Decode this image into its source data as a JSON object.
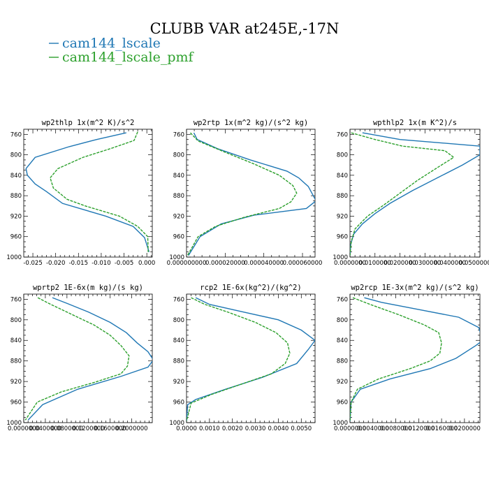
{
  "figure": {
    "title": "CLUBB VAR at245E,-17N",
    "legend": [
      {
        "label": "cam144_lscale",
        "color": "#1f77b4"
      },
      {
        "label": "cam144_lscale_pmf",
        "color": "#2ca02c"
      }
    ]
  },
  "chart_data": [
    {
      "type": "line",
      "title": "wp2thlp  1x(m^2 K)/s^2",
      "xlim": [
        -0.027,
        0.0012
      ],
      "ylim": [
        1000,
        750
      ],
      "xticks": [
        -0.025,
        -0.02,
        -0.015,
        -0.01,
        -0.005,
        0.0
      ],
      "xtick_labels": [
        "-0.025",
        "-0.020",
        "-0.015",
        "-0.010",
        "-0.005",
        "0.000"
      ],
      "yticks": [
        760,
        800,
        840,
        880,
        920,
        960,
        1000
      ],
      "ytick_labels": [
        "760",
        "800",
        "840",
        "880",
        "920",
        "960",
        "1000"
      ],
      "series": [
        {
          "name": "cam144_lscale",
          "style": "solid",
          "color": "#1f77b4",
          "x": [
            -0.0045,
            -0.011,
            -0.017,
            -0.0245,
            -0.0265,
            -0.0262,
            -0.0245,
            -0.022,
            -0.0185,
            -0.009,
            -0.003,
            -0.0005,
            0.0005
          ],
          "y": [
            757,
            770,
            784,
            805,
            827,
            840,
            857,
            872,
            895,
            920,
            940,
            962,
            990
          ]
        },
        {
          "name": "cam144_lscale_pmf",
          "style": "dashed",
          "color": "#2ca02c",
          "x": [
            -0.002,
            -0.0028,
            -0.008,
            -0.014,
            -0.0195,
            -0.0212,
            -0.0205,
            -0.0175,
            -0.0135,
            -0.006,
            -0.002,
            0.0002,
            0.0003
          ],
          "y": [
            755,
            772,
            788,
            805,
            827,
            845,
            865,
            887,
            900,
            920,
            940,
            960,
            990
          ]
        }
      ]
    },
    {
      "type": "line",
      "title": "wp2rtp  1x(m^2 kg)/(s^2 kg)",
      "xlim": [
        0.0,
        6.65e-05
      ],
      "ylim": [
        1000,
        750
      ],
      "xticks": [
        0.0,
        2e-05,
        4e-05,
        6e-05
      ],
      "xtick_labels": [
        "0.000000000",
        "0.000020000",
        "0.000040000",
        "0.000060000"
      ],
      "yticks": [
        760,
        800,
        840,
        880,
        920,
        960,
        1000
      ],
      "ytick_labels": [
        "760",
        "800",
        "840",
        "880",
        "920",
        "960",
        "1000"
      ],
      "series": [
        {
          "name": "cam144_lscale",
          "style": "solid",
          "color": "#1f77b4",
          "x": [
            3.8e-06,
            5.5e-06,
            1.6e-05,
            3.3e-05,
            5.2e-05,
            5.8e-05,
            6.3e-05,
            6.7e-05,
            6.2e-05,
            3.5e-05,
            1.8e-05,
            7e-06,
            1e-06
          ],
          "y": [
            757,
            770,
            788,
            810,
            832,
            845,
            862,
            890,
            905,
            918,
            935,
            960,
            997
          ]
        },
        {
          "name": "cam144_lscale_pmf",
          "style": "dashed",
          "color": "#2ca02c",
          "x": [
            2e-06,
            6e-06,
            2e-05,
            3.5e-05,
            4.8e-05,
            5.5e-05,
            5.7e-05,
            5.4e-05,
            4.8e-05,
            3e-05,
            1.5e-05,
            6e-06,
            5e-07
          ],
          "y": [
            757,
            773,
            795,
            818,
            840,
            860,
            875,
            892,
            905,
            922,
            940,
            960,
            997
          ]
        }
      ]
    },
    {
      "type": "line",
      "title": "wpthlp2  1x(m K^2)/s",
      "xlim": [
        0.0,
        0.052
      ],
      "ylim": [
        1000,
        750
      ],
      "xticks": [
        0.0,
        0.01,
        0.02,
        0.03,
        0.04,
        0.05
      ],
      "xtick_labels": [
        "0.0000000",
        "0.0100000",
        "0.0200000",
        "0.0300000",
        "0.0400000",
        "0.0500000"
      ],
      "yticks": [
        760,
        800,
        840,
        880,
        920,
        960,
        1000
      ],
      "ytick_labels": [
        "760",
        "800",
        "840",
        "880",
        "920",
        "960",
        "1000"
      ],
      "series": [
        {
          "name": "cam144_lscale",
          "style": "solid",
          "color": "#1f77b4",
          "x": [
            0.005,
            0.02,
            0.052,
            0.052,
            0.045,
            0.035,
            0.025,
            0.016,
            0.01,
            0.005,
            0.0015,
            0.0003,
            0.0
          ],
          "y": [
            757,
            770,
            783,
            800,
            820,
            845,
            870,
            895,
            915,
            935,
            955,
            975,
            997
          ]
        },
        {
          "name": "cam144_lscale_pmf",
          "style": "dashed",
          "color": "#2ca02c",
          "x": [
            0.0005,
            0.01,
            0.021,
            0.038,
            0.0415,
            0.035,
            0.027,
            0.02,
            0.013,
            0.007,
            0.002,
            0.0005,
            0.0
          ],
          "y": [
            757,
            770,
            783,
            792,
            805,
            825,
            850,
            875,
            900,
            920,
            945,
            970,
            997
          ]
        }
      ]
    },
    {
      "type": "line",
      "title": "wprtp2  1E-6x(m kg)/(s kg)",
      "xlim": [
        0.0,
        2.38e-06
      ],
      "ylim": [
        1000,
        750
      ],
      "xticks": [
        0.0,
        4e-07,
        8e-07,
        1.2e-06,
        1.6e-06,
        2e-06
      ],
      "xtick_labels": [
        "0.0000000",
        "0.0400000",
        "0.0800000",
        "0.1200000",
        "0.1600000",
        "0.2000000"
      ],
      "yticks": [
        760,
        800,
        840,
        880,
        920,
        960,
        1000
      ],
      "ytick_labels": [
        "760",
        "800",
        "840",
        "880",
        "920",
        "960",
        "1000"
      ],
      "series": [
        {
          "name": "cam144_lscale",
          "style": "solid",
          "color": "#1f77b4",
          "x": [
            5.3e-07,
            8e-07,
            1.2e-06,
            1.6e-06,
            1.9e-06,
            2.1e-06,
            2.3e-06,
            2.4e-06,
            2.3e-06,
            1.8e-06,
            1e-06,
            3.5e-07,
            8e-08
          ],
          "y": [
            757,
            768,
            785,
            805,
            825,
            845,
            862,
            878,
            892,
            910,
            935,
            965,
            995
          ]
        },
        {
          "name": "cam144_lscale_pmf",
          "style": "dashed",
          "color": "#2ca02c",
          "x": [
            2.6e-07,
            5e-07,
            9e-07,
            1.3e-06,
            1.6e-06,
            1.8e-06,
            1.95e-06,
            1.92e-06,
            1.8e-06,
            1.3e-06,
            7e-07,
            2.5e-07,
            3e-08
          ],
          "y": [
            757,
            770,
            790,
            810,
            830,
            850,
            870,
            890,
            905,
            922,
            940,
            960,
            995
          ]
        }
      ]
    },
    {
      "type": "line",
      "title": "rcp2  1E-6x(kg^2)/(kg^2)",
      "xlim": [
        0.0,
        0.0056
      ],
      "ylim": [
        1000,
        750
      ],
      "xticks": [
        0.0,
        0.001,
        0.002,
        0.003,
        0.004,
        0.005
      ],
      "xtick_labels": [
        "0.0000",
        "0.0010",
        "0.0020",
        "0.0030",
        "0.0040",
        "0.0050"
      ],
      "yticks": [
        760,
        800,
        840,
        880,
        920,
        960,
        1000
      ],
      "ytick_labels": [
        "760",
        "800",
        "840",
        "880",
        "920",
        "960",
        "1000"
      ],
      "series": [
        {
          "name": "cam144_lscale",
          "style": "solid",
          "color": "#1f77b4",
          "x": [
            0.0004,
            0.001,
            0.0025,
            0.004,
            0.005,
            0.0056,
            0.0053,
            0.0048,
            0.0033,
            0.0017,
            0.0004,
            5e-05,
            0.0
          ],
          "y": [
            757,
            770,
            785,
            800,
            820,
            840,
            858,
            885,
            912,
            935,
            955,
            965,
            997
          ]
        },
        {
          "name": "cam144_lscale_pmf",
          "style": "dashed",
          "color": "#2ca02c",
          "x": [
            0.0002,
            0.0008,
            0.0018,
            0.003,
            0.0039,
            0.0044,
            0.0045,
            0.0043,
            0.0037,
            0.0024,
            0.0011,
            0.0002,
            0.0
          ],
          "y": [
            757,
            770,
            785,
            805,
            825,
            845,
            865,
            885,
            905,
            925,
            945,
            962,
            997
          ]
        }
      ]
    },
    {
      "type": "line",
      "title": "wp2rcp  1E-3x(m^2 kg)/(s^2 kg)",
      "xlim": [
        0.0,
        2.27e-05
      ],
      "ylim": [
        1000,
        750
      ],
      "xticks": [
        0.0,
        4e-06,
        8e-06,
        1.2e-05,
        1.6e-05,
        2e-05
      ],
      "xtick_labels": [
        "0.0000000",
        "0.0040000",
        "0.0080000",
        "0.0120000",
        "0.0160000",
        "0.0200000"
      ],
      "yticks": [
        760,
        800,
        840,
        880,
        920,
        960,
        1000
      ],
      "ytick_labels": [
        "760",
        "800",
        "840",
        "880",
        "920",
        "960",
        "1000"
      ],
      "series": [
        {
          "name": "cam144_lscale",
          "style": "solid",
          "color": "#1f77b4",
          "x": [
            2.5e-06,
            5.5e-06,
            1.2e-05,
            1.9e-05,
            2.25e-05,
            2.32e-05,
            2.2e-05,
            1.85e-05,
            1.4e-05,
            7e-06,
            1.8e-06,
            2e-07,
            0.0
          ],
          "y": [
            757,
            766,
            780,
            795,
            815,
            840,
            850,
            875,
            895,
            915,
            935,
            960,
            997
          ]
        },
        {
          "name": "cam144_lscale_pmf",
          "style": "dashed",
          "color": "#2ca02c",
          "x": [
            5e-07,
            3.5e-06,
            8.5e-06,
            1.3e-05,
            1.55e-05,
            1.6e-05,
            1.57e-05,
            1.4e-05,
            1.05e-05,
            5e-06,
            1.3e-06,
            2e-07,
            0.0
          ],
          "y": [
            757,
            770,
            790,
            810,
            825,
            845,
            865,
            880,
            895,
            915,
            935,
            960,
            997
          ]
        }
      ]
    }
  ]
}
